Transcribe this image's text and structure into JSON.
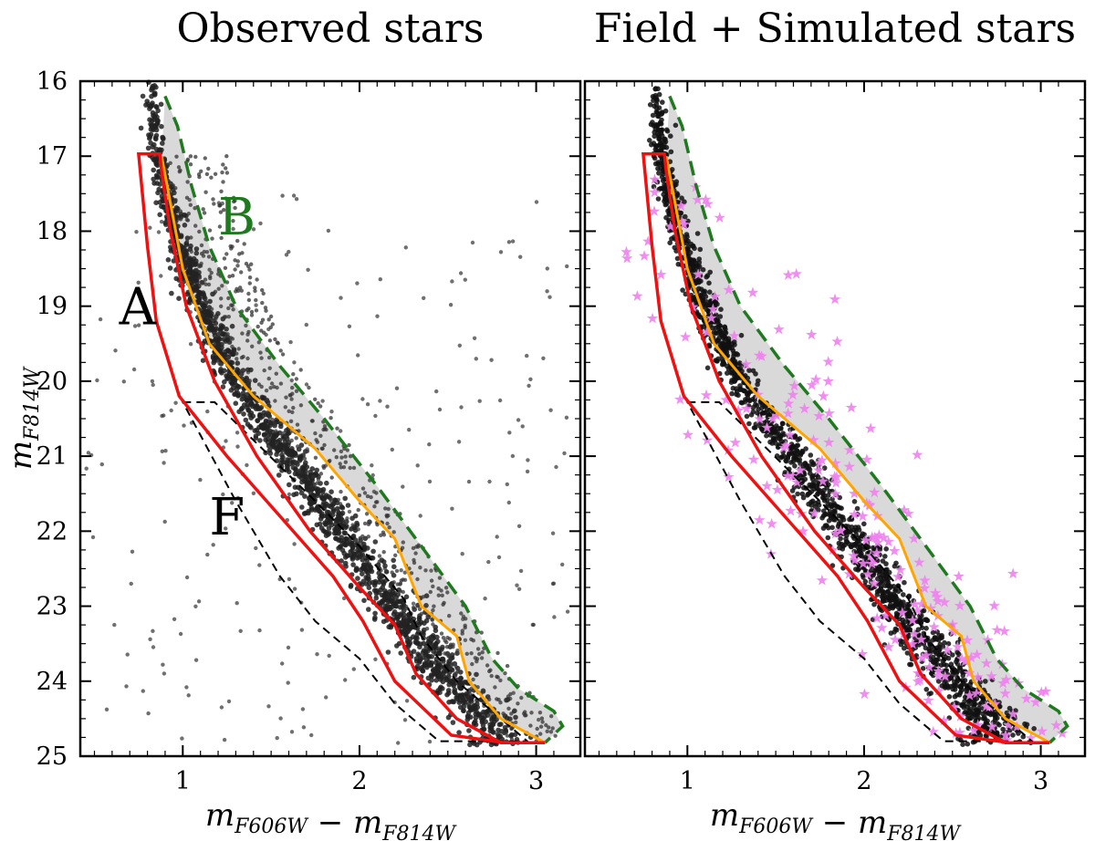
{
  "chart_data": [
    {
      "type": "scatter",
      "title": "Observed stars",
      "xlabel": "m_F606W − m_F814W",
      "ylabel": "m_F814W",
      "xlim": [
        0.42,
        3.25
      ],
      "ylim": [
        25,
        16
      ],
      "y_inverted": true,
      "xticks": [
        "1",
        "2",
        "3"
      ],
      "yticks": [
        "16",
        "17",
        "18",
        "19",
        "20",
        "21",
        "22",
        "23",
        "24",
        "25"
      ],
      "region_labels": [
        {
          "text": "A",
          "color": "#000000"
        },
        {
          "text": "B",
          "color": "#1f7a1f"
        },
        {
          "text": "F",
          "color": "#000000"
        }
      ],
      "series": [
        {
          "marker": "dot",
          "color": "#222222",
          "ridge_line": {
            "x": [
              0.82,
              0.85,
              0.95,
              1.1,
              1.3,
              1.6,
              1.9,
              2.2,
              2.5,
              2.75
            ],
            "y": [
              16.0,
              17.0,
              18.0,
              19.0,
              20.0,
              21.0,
              22.0,
              23.0,
              24.0,
              24.6
            ]
          }
        }
      ]
    },
    {
      "type": "scatter",
      "title": "Field + Simulated stars",
      "xlabel": "m_F606W − m_F814W",
      "ylabel": "",
      "xlim": [
        0.42,
        3.25
      ],
      "ylim": [
        25,
        16
      ],
      "y_inverted": true,
      "xticks": [
        "1",
        "2",
        "3"
      ],
      "yticks": [],
      "series": [
        {
          "marker": "dot",
          "color": "#111111"
        },
        {
          "marker": "star",
          "color": "#ee82ee"
        }
      ]
    }
  ],
  "colors": {
    "region_A": "#ee1111",
    "region_B": "#1f7a1f",
    "region_F": "#000000",
    "divider": "#ffa500",
    "fill": "#d9d9d9"
  }
}
